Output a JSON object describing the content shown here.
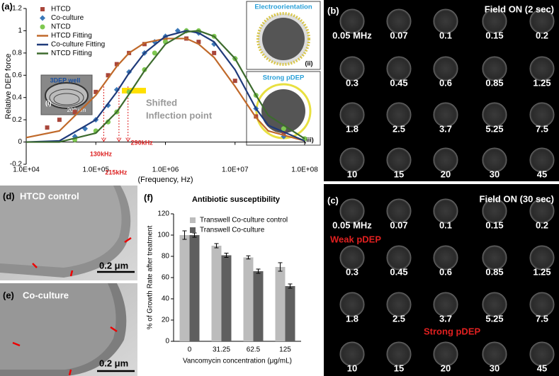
{
  "chart_data": [
    {
      "type": "line",
      "panel": "(a)",
      "ylabel": "Relative DEP force",
      "xlabel": "(Frequency, Hz)",
      "log_x": true,
      "xlim": [
        10000,
        100000000
      ],
      "xticks": [
        {
          "value": 10000,
          "label": "1.0E+04"
        },
        {
          "value": 100000,
          "label": "1.0E+05"
        },
        {
          "value": 1000000,
          "label": "1.0E+06"
        },
        {
          "value": 10000000,
          "label": "1.0E+07"
        },
        {
          "value": 100000000,
          "label": "1.0E+08"
        }
      ],
      "ylim": [
        -0.2,
        1.2
      ],
      "yticks": [
        -0.2,
        0,
        0.2,
        0.4,
        0.6,
        0.8,
        1,
        1.2
      ],
      "legend": "upper-left",
      "series": [
        {
          "name": "HTCD",
          "color": "#a9463a",
          "style": "markers",
          "marker": "square",
          "x": [
            20000,
            30000,
            50000,
            100000,
            150000,
            200000,
            300000,
            500000,
            1000000,
            2000000,
            3000000,
            5000000,
            10000000,
            20000000,
            50000000
          ],
          "values": [
            0.13,
            0.2,
            0.27,
            0.45,
            0.6,
            0.7,
            0.8,
            0.88,
            0.93,
            0.93,
            0.9,
            0.8,
            0.55,
            0.23,
            0.08
          ]
        },
        {
          "name": "Co-culture",
          "color": "#3b78b8",
          "style": "markers",
          "marker": "diamond",
          "x": [
            50000,
            70000,
            100000,
            150000,
            200000,
            300000,
            500000,
            700000,
            1000000,
            1500000,
            2000000,
            3000000,
            5000000,
            10000000,
            20000000,
            50000000
          ],
          "values": [
            0.05,
            0.12,
            0.2,
            0.33,
            0.47,
            0.63,
            0.8,
            0.9,
            0.95,
            1,
            1,
            0.98,
            0.88,
            0.75,
            0.3,
            0.05
          ]
        },
        {
          "name": "NTCD",
          "color": "#7ec850",
          "style": "markers",
          "marker": "circle",
          "x": [
            50000,
            100000,
            150000,
            200000,
            300000,
            500000,
            700000,
            1000000,
            2000000,
            3000000,
            5000000,
            10000000,
            20000000,
            50000000,
            100000000
          ],
          "values": [
            0.02,
            0.1,
            0.18,
            0.27,
            0.45,
            0.65,
            0.8,
            0.9,
            1,
            1,
            0.95,
            0.75,
            0.42,
            0.12,
            0.03
          ]
        },
        {
          "name": "HTCD Fitting",
          "color": "#c0692a",
          "style": "line",
          "x": [
            10000,
            30000,
            100000,
            200000,
            300000,
            500000,
            1000000,
            2000000,
            3000000,
            5000000,
            10000000,
            20000000,
            30000000,
            100000000
          ],
          "values": [
            0.04,
            0.1,
            0.42,
            0.68,
            0.8,
            0.89,
            0.93,
            0.93,
            0.88,
            0.76,
            0.5,
            0.22,
            0.1,
            0.01
          ]
        },
        {
          "name": "Co-culture Fitting",
          "color": "#1f3a7a",
          "style": "line",
          "x": [
            10000,
            30000,
            100000,
            200000,
            300000,
            500000,
            1000000,
            2000000,
            3000000,
            5000000,
            10000000,
            20000000,
            30000000,
            100000000
          ],
          "values": [
            0,
            0.01,
            0.2,
            0.45,
            0.62,
            0.8,
            0.95,
            1,
            0.98,
            0.9,
            0.65,
            0.3,
            0.15,
            0.01
          ]
        },
        {
          "name": "NTCD Fitting",
          "color": "#3d6b2e",
          "style": "line",
          "x": [
            10000,
            30000,
            100000,
            200000,
            300000,
            500000,
            1000000,
            2000000,
            3000000,
            5000000,
            10000000,
            20000000,
            30000000,
            100000000
          ],
          "values": [
            0,
            0,
            0.08,
            0.27,
            0.43,
            0.64,
            0.88,
            0.99,
            1,
            0.95,
            0.75,
            0.42,
            0.24,
            0.03
          ]
        }
      ],
      "annotations": [
        {
          "text": "130kHz",
          "x": 130000
        },
        {
          "text": "215kHz",
          "x": 215000
        },
        {
          "text": "290kHz",
          "x": 290000
        }
      ],
      "notes": [
        "Shifted",
        "Inflection point"
      ],
      "insets": {
        "well": "3DEP well",
        "well_tag": "(i)",
        "well_scale": "200 μm",
        "orientation": "Electroorientation",
        "orientation_tag": "(ii)",
        "pdep": "Strong pDEP",
        "pdep_tag": "(iii)"
      }
    },
    {
      "type": "bar",
      "panel": "(f)",
      "title": "Antibiotic susceptibility",
      "xlabel": "Vancomycin concentration (μg/mL)",
      "ylabel": "% of Growth Rate after treatment",
      "categories": [
        "0",
        "31.25",
        "62.5",
        "125"
      ],
      "ylim": [
        0,
        120
      ],
      "yticks": [
        0,
        20,
        40,
        60,
        80,
        100,
        120
      ],
      "legend": "upper-left",
      "series": [
        {
          "name": "Transwell Co-culture control",
          "color": "#bcbcbc",
          "values": [
            100,
            90,
            79,
            70
          ],
          "errors": [
            4,
            2,
            1.5,
            4
          ]
        },
        {
          "name": "Transwell Co-culture",
          "color": "#5f5f5f",
          "values": [
            100,
            81,
            66,
            52
          ],
          "errors": [
            2,
            2,
            2,
            2
          ]
        }
      ]
    }
  ],
  "panel_b": {
    "label": "(b)",
    "status": "Field ON (2 sec)",
    "wells": [
      "0.05 MHz",
      "0.07",
      "0.1",
      "0.15",
      "0.2",
      "0.3",
      "0.45",
      "0.6",
      "0.85",
      "1.25",
      "1.8",
      "2.5",
      "3.7",
      "5.25",
      "7.5",
      "10",
      "15",
      "20",
      "30",
      "45"
    ]
  },
  "panel_c": {
    "label": "(c)",
    "status": "Field ON (30 sec)",
    "wells": [
      "0.05 MHz",
      "0.07",
      "0.1",
      "0.15",
      "0.2",
      "0.3",
      "0.45",
      "0.6",
      "0.85",
      "1.25",
      "1.8",
      "2.5",
      "3.7",
      "5.25",
      "7.5",
      "10",
      "15",
      "20",
      "30",
      "45"
    ],
    "weak": "Weak pDEP",
    "strong": "Strong pDEP"
  },
  "panel_d": {
    "label": "(d)",
    "title": "HTCD control",
    "scale": "0.2 μm"
  },
  "panel_e": {
    "label": "(e)",
    "title": "Co-culture",
    "scale": "0.2 μm"
  }
}
